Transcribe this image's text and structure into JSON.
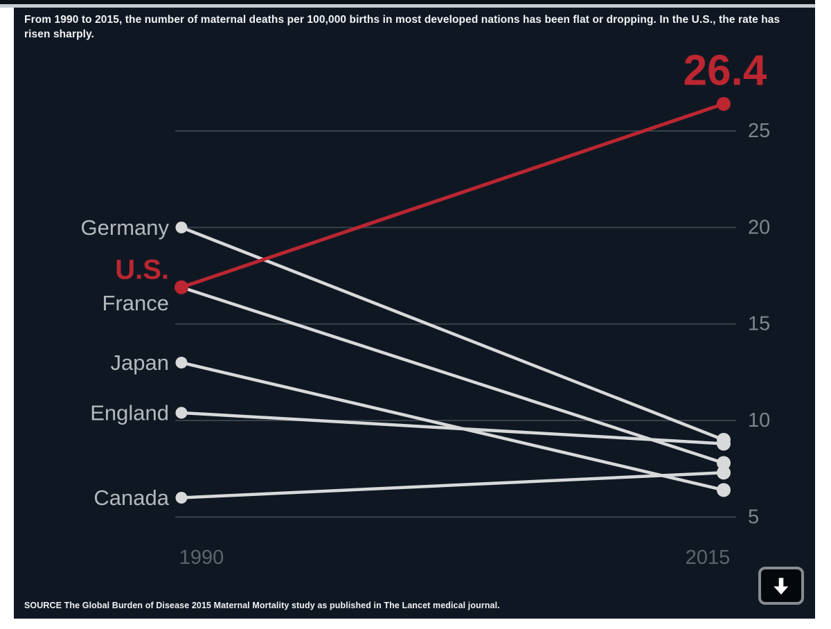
{
  "header": {
    "title": "From 1990 to 2015, the number of maternal deaths per 100,000 births in most developed nations has been flat or dropping. In the U.S., the rate has risen sharply."
  },
  "footer": {
    "source": "SOURCE The Global Burden of Disease 2015 Maternal Mortality study as published in The Lancet medical journal.",
    "scroll_button": "down-arrow"
  },
  "colors": {
    "background": "#0f1822",
    "background_darker": "#0a1117",
    "divider": "#c7ccd1",
    "accent_red": "#bb2631",
    "line_gray": "#d8d9da",
    "grid": "#39424b",
    "country_label_gray": "#b4b9bf",
    "tick_gray": "#7e858d",
    "year_gray": "#5d646d",
    "text_white": "#f1f3f5",
    "button_border": "#878c91",
    "button_bg": "#04080d",
    "icon_white": "#ffffff"
  },
  "chart_data": {
    "type": "line",
    "subtype": "slope",
    "title": "From 1990 to 2015, the number of maternal deaths per 100,000 births in most developed nations has been flat or dropping. In the U.S., the rate has risen sharply.",
    "xlabel": "",
    "ylabel": "maternal deaths per 100,000 births",
    "x_tick_labels": [
      "1990",
      "2015"
    ],
    "y_ticks": [
      25,
      20,
      15,
      10,
      5
    ],
    "ylim": [
      3.5,
      28.5
    ],
    "grid": true,
    "axis_side": "right",
    "series": [
      {
        "name": "Germany",
        "values": [
          20.0,
          9.0
        ],
        "color": "gray"
      },
      {
        "name": "France",
        "values": [
          16.9,
          7.8
        ],
        "color": "gray",
        "label_dy": 23
      },
      {
        "name": "Japan",
        "values": [
          13.0,
          6.4
        ],
        "color": "gray"
      },
      {
        "name": "England",
        "values": [
          10.4,
          8.8
        ],
        "color": "gray"
      },
      {
        "name": "Canada",
        "values": [
          6.0,
          7.3
        ],
        "color": "gray"
      },
      {
        "name": "U.S.",
        "values": [
          16.9,
          26.4
        ],
        "color": "red",
        "emphasis": true,
        "end_label": "26.4",
        "label_dy": -25
      }
    ]
  }
}
